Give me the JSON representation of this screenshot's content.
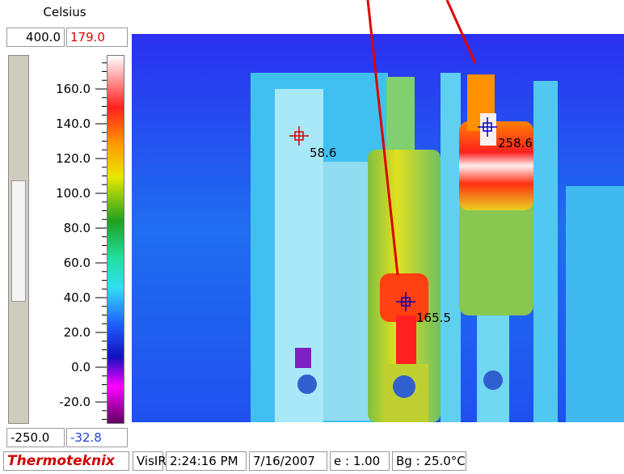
{
  "header": {
    "unit": "Celsius",
    "max_range": "400.0",
    "max_value": "179.0"
  },
  "scale": {
    "ticks": [
      "160.0",
      "140.0",
      "120.0",
      "100.0",
      "80.0",
      "60.0",
      "40.0",
      "20.0",
      "0.0",
      "-20.0"
    ]
  },
  "footer": {
    "min_range": "-250.0",
    "min_value": "-32.8"
  },
  "spots": [
    {
      "label": "58.6"
    },
    {
      "label": "258.6"
    },
    {
      "label": "165.5"
    }
  ],
  "status_bar": {
    "brand": "Thermoteknix",
    "mode": "VisIR",
    "time": "2:24:16 PM",
    "date": "7/16/2007",
    "emissivity": "e : 1.00",
    "background": "Bg : 25.0°C"
  }
}
